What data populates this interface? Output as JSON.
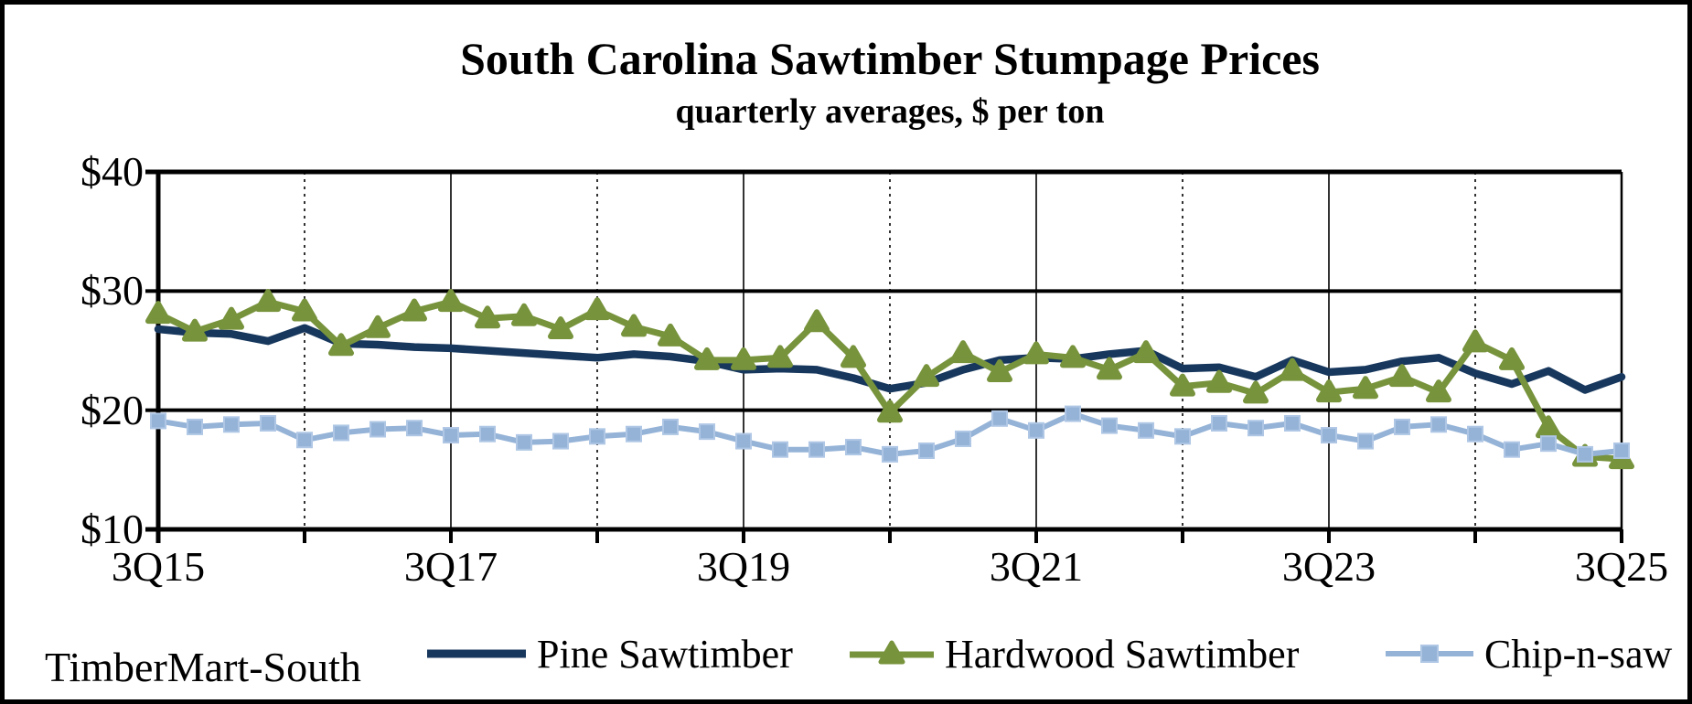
{
  "title": "South Carolina Sawtimber Stumpage Prices",
  "subtitle": "quarterly averages, $ per ton",
  "attribution": "TimberMart-South",
  "colors": {
    "pine": "#17375D",
    "hardwood": "#77933C",
    "chip_n_saw": "#95B3D7",
    "chip_n_saw_edge": "#AFC7E5",
    "grid": "#000000",
    "background": "#FFFFFF"
  },
  "axes": {
    "y": {
      "labels": [
        "$40",
        "$30",
        "$20",
        "$10"
      ],
      "min": 10,
      "max": 40,
      "step": 10
    },
    "x": {
      "labels": [
        "3Q15",
        "3Q17",
        "3Q19",
        "3Q21",
        "3Q23",
        "3Q25"
      ]
    }
  },
  "legend": [
    {
      "label": "Pine Sawtimber",
      "marker": "line"
    },
    {
      "label": "Hardwood Sawtimber",
      "marker": "triangle"
    },
    {
      "label": "Chip-n-saw",
      "marker": "square"
    }
  ],
  "chart_data": {
    "type": "line",
    "title": "South Carolina Sawtimber Stumpage Prices",
    "subtitle": "quarterly averages, $ per ton",
    "ylabel": "$ per ton",
    "ylim": [
      10,
      40
    ],
    "y_ticks": [
      10,
      20,
      30,
      40
    ],
    "grid": "horizontal-solid, vertical-yearly (solid on labeled years, dashed between)",
    "legend_position": "bottom",
    "x_tick_labels_shown": [
      "3Q15",
      "3Q17",
      "3Q19",
      "3Q21",
      "3Q23",
      "3Q25"
    ],
    "categories": [
      "3Q15",
      "4Q15",
      "1Q16",
      "2Q16",
      "3Q16",
      "4Q16",
      "1Q17",
      "2Q17",
      "3Q17",
      "4Q17",
      "1Q18",
      "2Q18",
      "3Q18",
      "4Q18",
      "1Q19",
      "2Q19",
      "3Q19",
      "4Q19",
      "1Q20",
      "2Q20",
      "3Q20",
      "4Q20",
      "1Q21",
      "2Q21",
      "3Q21",
      "4Q21",
      "1Q22",
      "2Q22",
      "3Q22",
      "4Q22",
      "1Q23",
      "2Q23",
      "3Q23",
      "4Q23",
      "1Q24",
      "2Q24",
      "3Q24",
      "4Q24",
      "1Q25",
      "2Q25",
      "3Q25"
    ],
    "series": [
      {
        "name": "Pine Sawtimber",
        "color": "#17375D",
        "marker": "none",
        "values": [
          26.8,
          26.5,
          26.4,
          25.8,
          26.9,
          25.6,
          25.5,
          25.3,
          25.2,
          25.0,
          24.8,
          24.6,
          24.4,
          24.7,
          24.5,
          24.1,
          23.4,
          23.5,
          23.4,
          22.7,
          21.8,
          22.3,
          23.4,
          24.2,
          24.4,
          24.3,
          24.7,
          25.0,
          23.5,
          23.6,
          22.8,
          24.2,
          23.2,
          23.4,
          24.1,
          24.4,
          23.1,
          22.2,
          23.3,
          21.7,
          22.8
        ]
      },
      {
        "name": "Hardwood Sawtimber",
        "color": "#77933C",
        "marker": "triangle",
        "values": [
          28.1,
          26.6,
          27.6,
          29.1,
          28.3,
          25.4,
          26.9,
          28.3,
          29.1,
          27.7,
          27.9,
          26.8,
          28.4,
          27.0,
          26.2,
          24.2,
          24.2,
          24.4,
          27.4,
          24.4,
          19.8,
          22.8,
          24.8,
          23.2,
          24.7,
          24.4,
          23.4,
          24.8,
          22.0,
          22.3,
          21.4,
          23.3,
          21.5,
          21.8,
          22.8,
          21.5,
          25.7,
          24.2,
          18.5,
          16.1,
          15.9
        ]
      },
      {
        "name": "Chip-n-saw",
        "color": "#95B3D7",
        "marker": "square",
        "values": [
          19.1,
          18.6,
          18.8,
          18.9,
          17.5,
          18.1,
          18.4,
          18.5,
          17.9,
          18.0,
          17.3,
          17.4,
          17.8,
          18.0,
          18.6,
          18.2,
          17.4,
          16.7,
          16.7,
          16.9,
          16.3,
          16.6,
          17.6,
          19.3,
          18.3,
          19.7,
          18.7,
          18.3,
          17.8,
          18.9,
          18.5,
          18.9,
          17.9,
          17.4,
          18.6,
          18.8,
          18.0,
          16.7,
          17.2,
          16.3,
          16.6
        ]
      }
    ]
  }
}
